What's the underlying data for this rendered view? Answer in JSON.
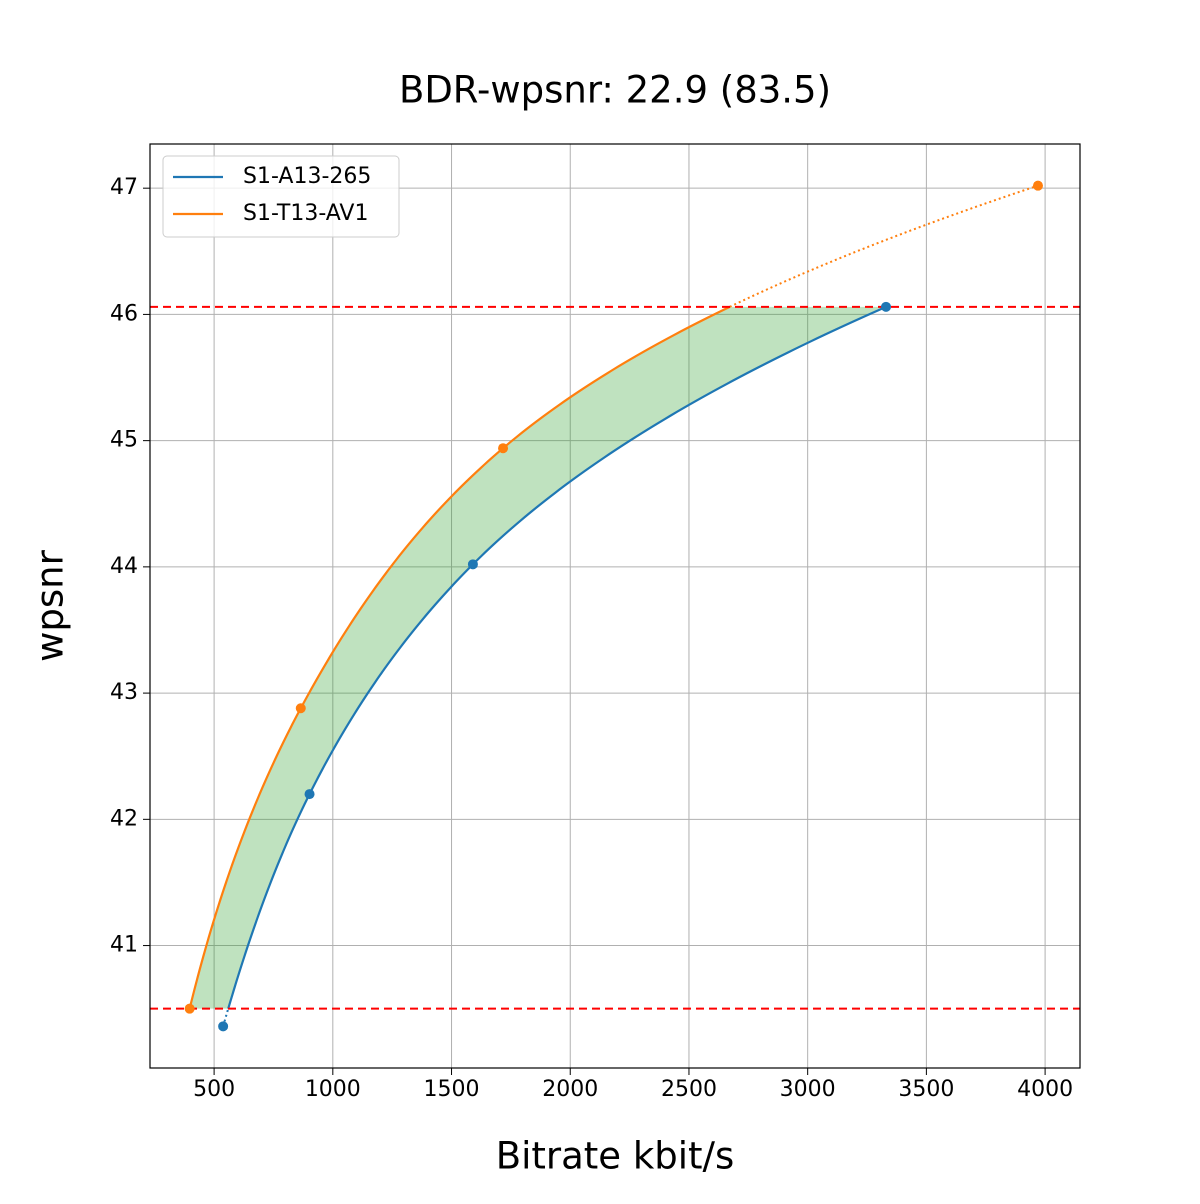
{
  "chart_data": {
    "type": "line",
    "title": "BDR-wpsnr: 22.9 (83.5)",
    "x_label": "Bitrate kbit/s",
    "y_label": "wpsnr",
    "series": [
      {
        "name": "S1-A13-265",
        "color": "#1f77b4",
        "x": [
          538,
          902,
          1590,
          3330
        ],
        "values": [
          40.36,
          42.2,
          44.02,
          46.06
        ]
      },
      {
        "name": "S1-T13-AV1",
        "color": "#ff7f0e",
        "x": [
          397,
          865,
          1717,
          3970
        ],
        "values": [
          40.5,
          42.88,
          44.94,
          47.02
        ]
      }
    ],
    "xlim": [
      230,
      4147
    ],
    "ylim": [
      40.03,
      47.35
    ],
    "xticks": [
      500,
      1000,
      1500,
      2000,
      2500,
      3000,
      3500,
      4000
    ],
    "yticks": [
      41,
      42,
      43,
      44,
      45,
      46,
      47
    ],
    "grid": true,
    "legend": "upper left",
    "fill_color": "#2ca02c",
    "threshold_color": "#ff0000"
  }
}
